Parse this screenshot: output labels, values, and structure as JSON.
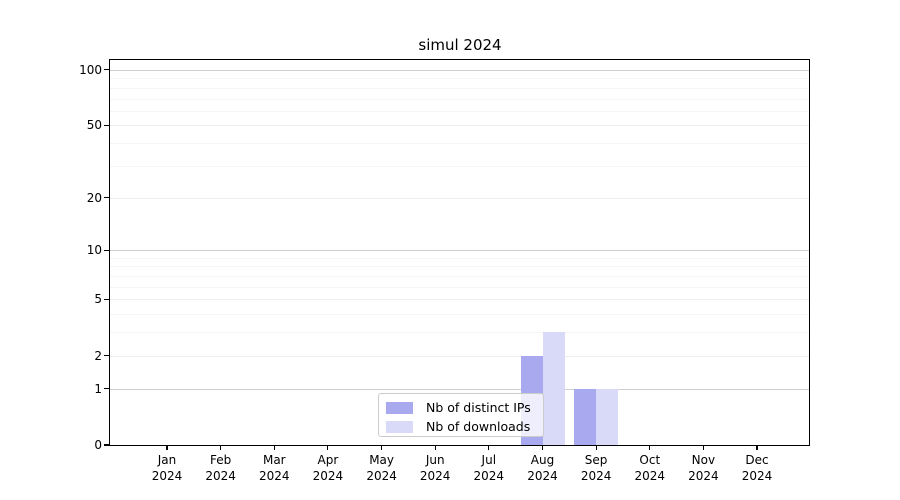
{
  "title": "simul 2024",
  "chart_data": {
    "type": "bar",
    "title": "simul 2024",
    "categories": [
      "Jan",
      "Feb",
      "Mar",
      "Apr",
      "May",
      "Jun",
      "Jul",
      "Aug",
      "Sep",
      "Oct",
      "Nov",
      "Dec"
    ],
    "category_year": "2024",
    "series": [
      {
        "name": "Nb of distinct IPs",
        "color": "#a9a9f0",
        "values": [
          0,
          0,
          0,
          0,
          0,
          0,
          0,
          2,
          1,
          0,
          0,
          0
        ]
      },
      {
        "name": "Nb of downloads",
        "color": "#d9d9f8",
        "values": [
          0,
          0,
          0,
          0,
          0,
          0,
          0,
          3,
          1,
          0,
          0,
          0
        ]
      }
    ],
    "yscale": "symlog",
    "yticks": [
      0,
      1,
      2,
      5,
      10,
      20,
      50,
      100
    ],
    "major_gridlines": [
      1,
      10,
      100
    ],
    "mid_gridlines": [
      2,
      5,
      20,
      50
    ],
    "minor_gridlines": [
      3,
      4,
      6,
      7,
      8,
      9,
      30,
      40,
      60,
      70,
      80,
      90
    ],
    "ylim": [
      0,
      113
    ],
    "xlabel": "",
    "ylabel": "",
    "grid": true,
    "legend_position": "lower center"
  },
  "colors": {
    "background": "#ffffff",
    "spine": "#000000",
    "text": "#000000",
    "grid_major": "#cfcfcf",
    "grid_mid": "#ededed",
    "grid_minor": "#f5f5f5",
    "legend_border": "#cccccc",
    "legend_bg": "rgba(255,255,255,0.8)",
    "series_distinct_ips": "#a9a9f0",
    "series_downloads": "#d9d9f8"
  }
}
